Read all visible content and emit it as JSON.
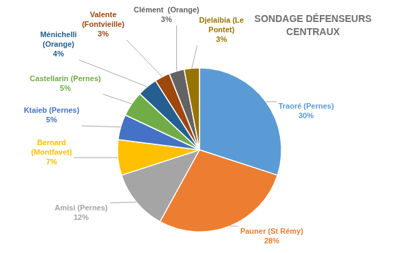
{
  "chart_data": {
    "type": "pie",
    "title": "SONDAGE DÉFENSEURS CENTRAUX",
    "categories": [
      "Traoré (Pernes)",
      "Pauner (St Rémy)",
      "Amisi (Pernes)",
      "Bernard (Montfavet)",
      "Ktaieb (Pernes)",
      "Castellarin (Pernes)",
      "Ménichelli (Orange)",
      "Valente (Fontvieille)",
      "Clément  (Orange)",
      "Djelaibia (Le Pontet)"
    ],
    "values": [
      30,
      28,
      12,
      7,
      5,
      5,
      4,
      3,
      3,
      3
    ],
    "value_labels": [
      "30%",
      "28%",
      "12%",
      "7%",
      "5%",
      "5%",
      "4%",
      "3%",
      "3%",
      "3%"
    ],
    "colors": [
      "#5b9bd5",
      "#ed7d31",
      "#a5a5a5",
      "#ffc000",
      "#4472c4",
      "#70ad47",
      "#255e91",
      "#9e480e",
      "#636363",
      "#997300"
    ],
    "data_labels": true
  }
}
